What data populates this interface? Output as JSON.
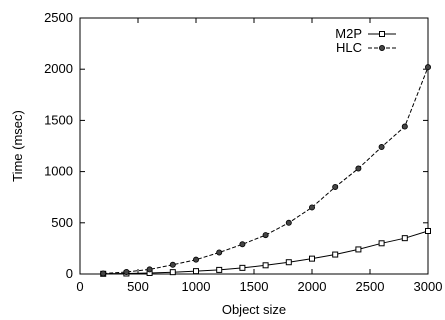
{
  "chart_data": {
    "type": "line",
    "title": "",
    "xlabel": "Object size",
    "ylabel": "Time (msec)",
    "xlim": [
      0,
      3000
    ],
    "ylim": [
      0,
      2500
    ],
    "x_ticks": [
      0,
      500,
      1000,
      1500,
      2000,
      2500,
      3000
    ],
    "y_ticks": [
      0,
      500,
      1000,
      1500,
      2000,
      2500
    ],
    "legend_position": "top-right",
    "grid": false,
    "series": [
      {
        "name": "M2P",
        "marker": "square",
        "line_style": "solid",
        "x": [
          200,
          400,
          600,
          800,
          1000,
          1200,
          1400,
          1600,
          1800,
          2000,
          2200,
          2400,
          2600,
          2800,
          3000
        ],
        "y": [
          2,
          5,
          10,
          18,
          28,
          40,
          60,
          85,
          115,
          150,
          190,
          240,
          300,
          350,
          420
        ]
      },
      {
        "name": "HLC",
        "marker": "circle",
        "line_style": "dashed",
        "x": [
          200,
          400,
          600,
          800,
          1000,
          1200,
          1400,
          1600,
          1800,
          2000,
          2200,
          2400,
          2600,
          2800,
          3000
        ],
        "y": [
          5,
          20,
          45,
          90,
          140,
          210,
          290,
          380,
          500,
          650,
          850,
          1030,
          1240,
          1440,
          2020
        ]
      }
    ]
  }
}
